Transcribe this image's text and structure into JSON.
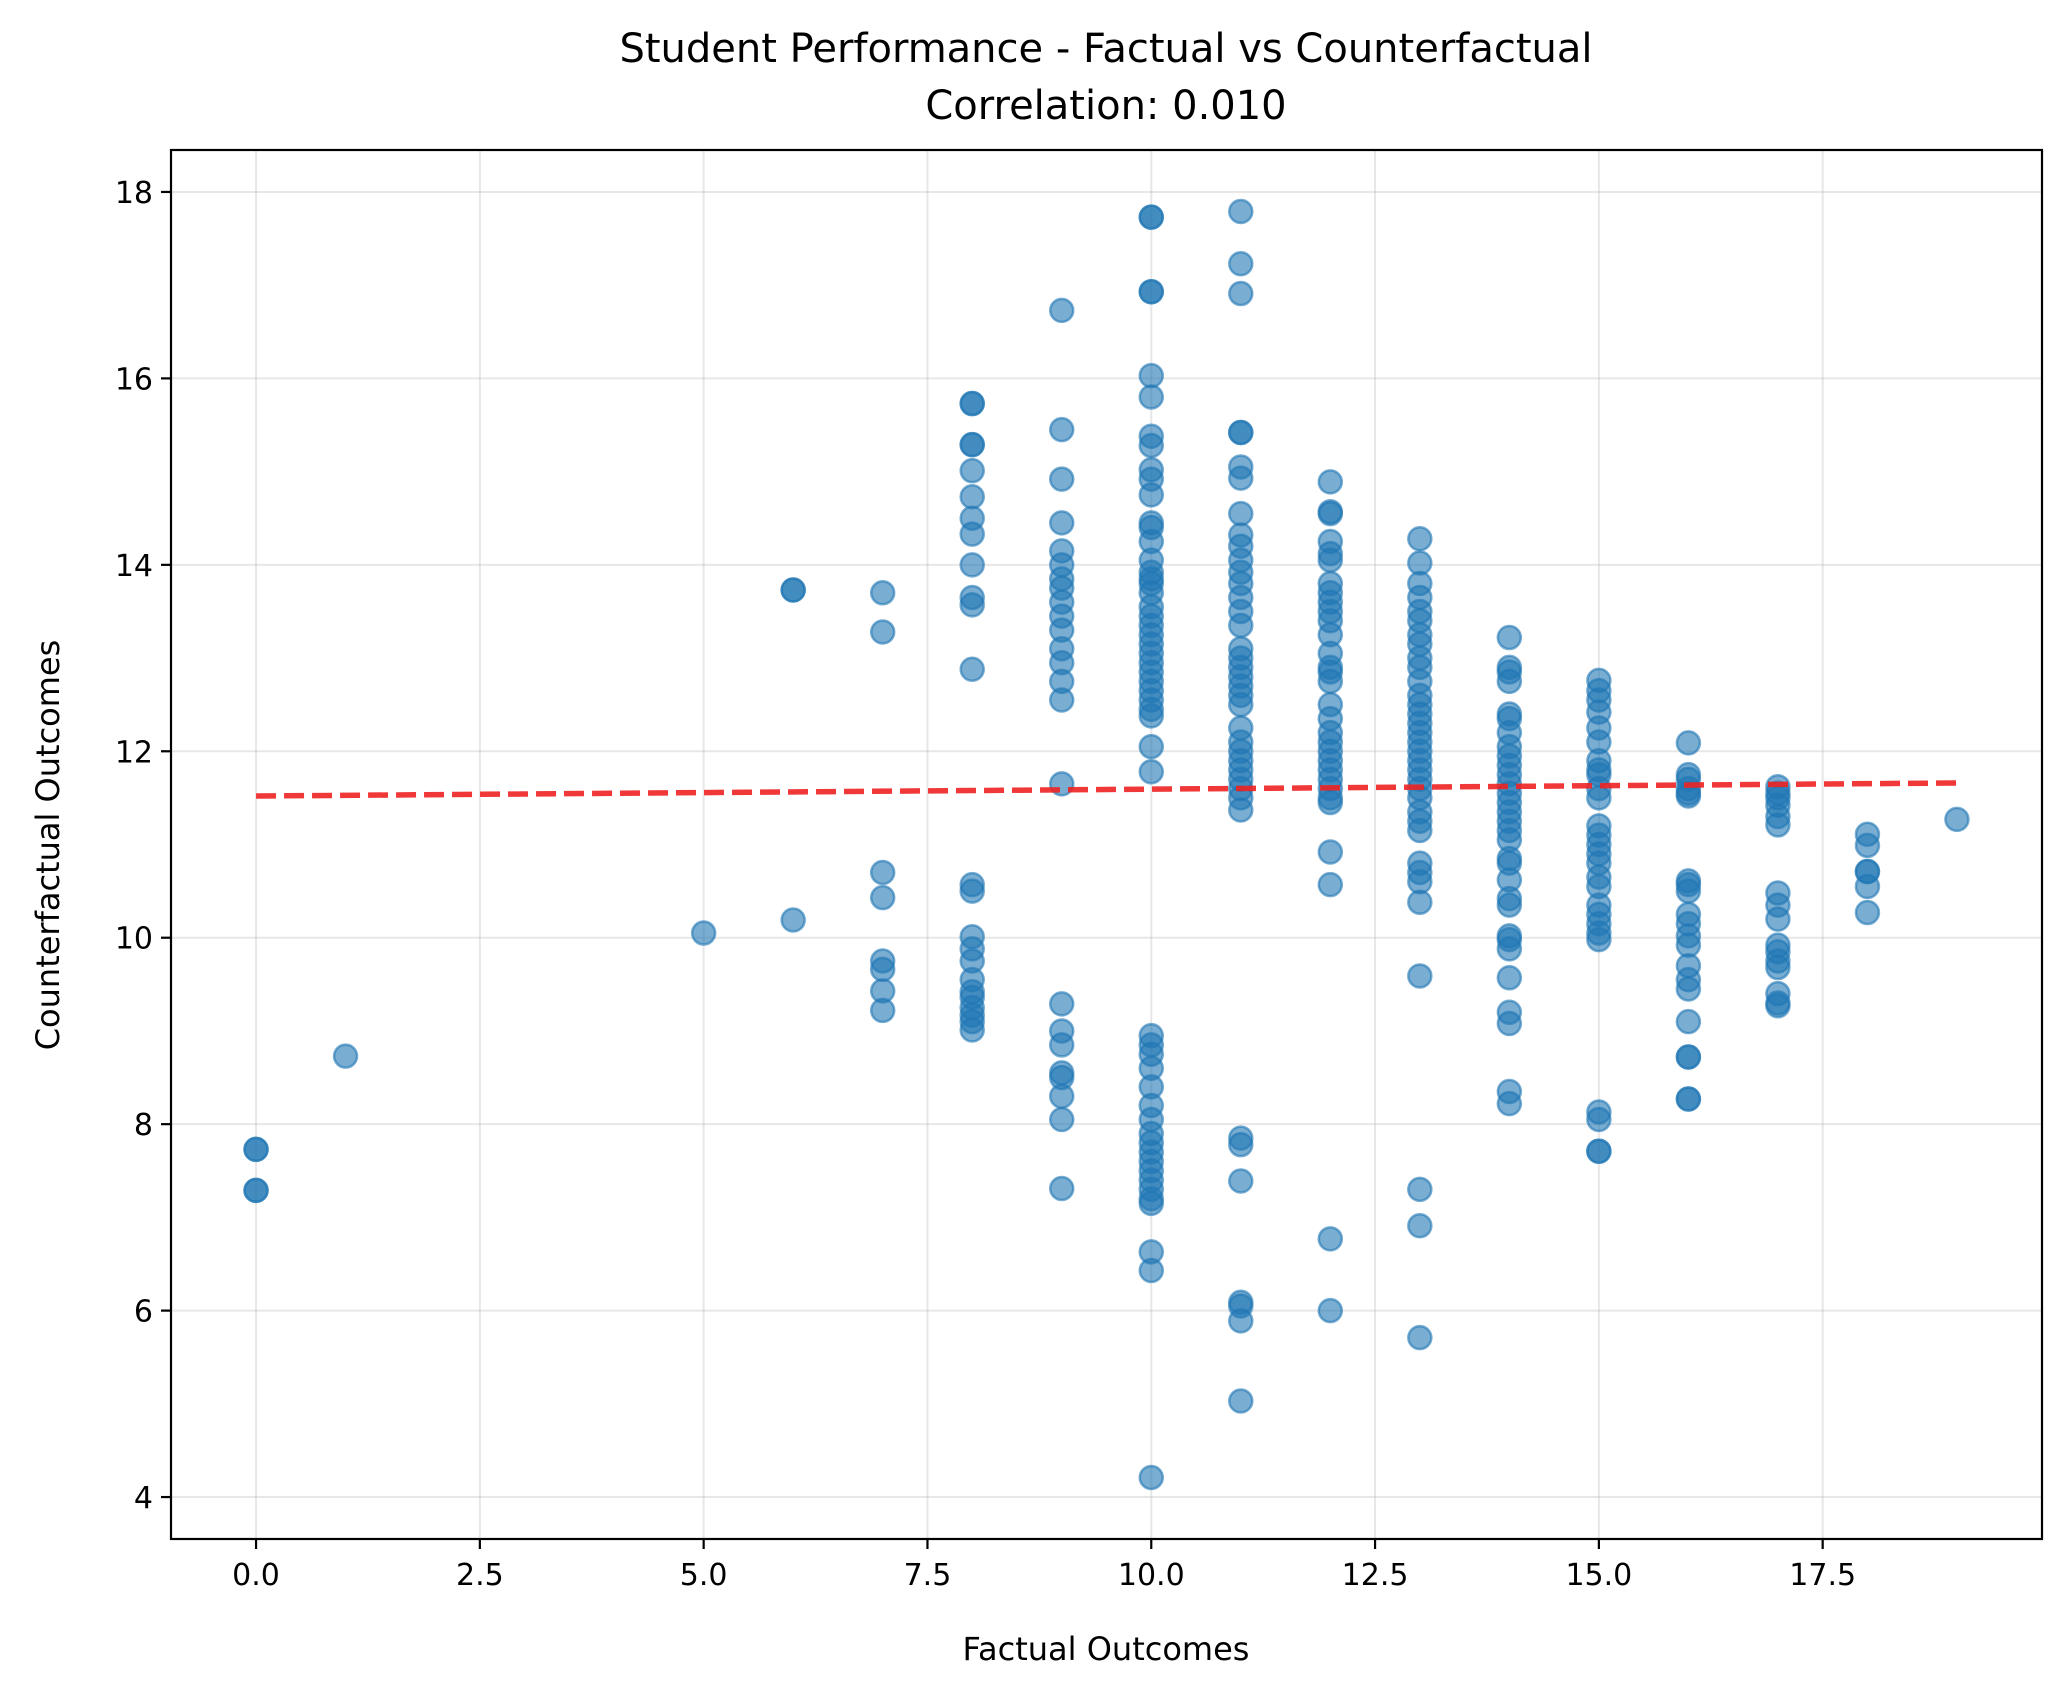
{
  "chart_data": {
    "type": "scatter",
    "title": "Student Performance - Factual vs Counterfactual",
    "subtitle": "Correlation: 0.010",
    "xlabel": "Factual Outcomes",
    "ylabel": "Counterfactual Outcomes",
    "xlim": [
      -0.95,
      19.95
    ],
    "ylim": [
      3.55,
      18.45
    ],
    "xticks": [
      0.0,
      2.5,
      5.0,
      7.5,
      10.0,
      12.5,
      15.0,
      17.5
    ],
    "xtick_labels": [
      "0.0",
      "2.5",
      "5.0",
      "7.5",
      "10.0",
      "12.5",
      "15.0",
      "17.5"
    ],
    "yticks": [
      4,
      6,
      8,
      10,
      12,
      14,
      16,
      18
    ],
    "ytick_labels": [
      "4",
      "6",
      "8",
      "10",
      "12",
      "14",
      "16",
      "18"
    ],
    "grid": true,
    "point_color": "#1f77b4",
    "point_alpha": 0.6,
    "trend_color": "#ee2222",
    "trend_line": {
      "x": [
        0,
        19
      ],
      "y": [
        11.52,
        11.66
      ],
      "style": "dashed"
    },
    "points": [
      [
        0,
        7.73
      ],
      [
        0,
        7.73
      ],
      [
        0,
        7.29
      ],
      [
        0,
        7.29
      ],
      [
        1,
        8.73
      ],
      [
        5,
        10.05
      ],
      [
        6,
        13.73
      ],
      [
        6,
        13.73
      ],
      [
        6,
        10.19
      ],
      [
        7,
        13.7
      ],
      [
        7,
        13.28
      ],
      [
        7,
        10.7
      ],
      [
        7,
        10.43
      ],
      [
        7,
        9.75
      ],
      [
        7,
        9.66
      ],
      [
        7,
        9.43
      ],
      [
        7,
        9.22
      ],
      [
        8,
        15.73
      ],
      [
        8,
        15.73
      ],
      [
        8,
        15.29
      ],
      [
        8,
        15.29
      ],
      [
        8,
        15.01
      ],
      [
        8,
        14.73
      ],
      [
        8,
        14.5
      ],
      [
        8,
        14.33
      ],
      [
        8,
        14.0
      ],
      [
        8,
        13.65
      ],
      [
        8,
        13.57
      ],
      [
        8,
        12.88
      ],
      [
        8,
        10.57
      ],
      [
        8,
        10.5
      ],
      [
        8,
        10.01
      ],
      [
        8,
        9.88
      ],
      [
        8,
        9.75
      ],
      [
        8,
        9.55
      ],
      [
        8,
        9.42
      ],
      [
        8,
        9.36
      ],
      [
        8,
        9.25
      ],
      [
        8,
        9.17
      ],
      [
        8,
        9.1
      ],
      [
        8,
        9.01
      ],
      [
        9,
        16.73
      ],
      [
        9,
        15.45
      ],
      [
        9,
        14.92
      ],
      [
        9,
        14.45
      ],
      [
        9,
        14.15
      ],
      [
        9,
        14.0
      ],
      [
        9,
        13.85
      ],
      [
        9,
        13.75
      ],
      [
        9,
        13.6
      ],
      [
        9,
        13.45
      ],
      [
        9,
        13.3
      ],
      [
        9,
        13.1
      ],
      [
        9,
        12.95
      ],
      [
        9,
        12.75
      ],
      [
        9,
        12.55
      ],
      [
        9,
        11.65
      ],
      [
        9,
        9.29
      ],
      [
        9,
        9.0
      ],
      [
        9,
        8.85
      ],
      [
        9,
        8.55
      ],
      [
        9,
        8.5
      ],
      [
        9,
        8.3
      ],
      [
        9,
        8.05
      ],
      [
        9,
        7.31
      ],
      [
        10,
        17.73
      ],
      [
        10,
        17.73
      ],
      [
        10,
        16.93
      ],
      [
        10,
        16.93
      ],
      [
        10,
        16.03
      ],
      [
        10,
        15.8
      ],
      [
        10,
        15.38
      ],
      [
        10,
        15.28
      ],
      [
        10,
        15.02
      ],
      [
        10,
        14.92
      ],
      [
        10,
        14.75
      ],
      [
        10,
        14.45
      ],
      [
        10,
        14.4
      ],
      [
        10,
        14.25
      ],
      [
        10,
        14.05
      ],
      [
        10,
        13.92
      ],
      [
        10,
        13.85
      ],
      [
        10,
        13.8
      ],
      [
        10,
        13.7
      ],
      [
        10,
        13.55
      ],
      [
        10,
        13.45
      ],
      [
        10,
        13.35
      ],
      [
        10,
        13.25
      ],
      [
        10,
        13.15
      ],
      [
        10,
        13.05
      ],
      [
        10,
        12.95
      ],
      [
        10,
        12.85
      ],
      [
        10,
        12.75
      ],
      [
        10,
        12.65
      ],
      [
        10,
        12.55
      ],
      [
        10,
        12.45
      ],
      [
        10,
        12.38
      ],
      [
        10,
        12.05
      ],
      [
        10,
        11.78
      ],
      [
        10,
        8.95
      ],
      [
        10,
        8.85
      ],
      [
        10,
        8.75
      ],
      [
        10,
        8.6
      ],
      [
        10,
        8.4
      ],
      [
        10,
        8.2
      ],
      [
        10,
        8.05
      ],
      [
        10,
        7.9
      ],
      [
        10,
        7.8
      ],
      [
        10,
        7.7
      ],
      [
        10,
        7.6
      ],
      [
        10,
        7.5
      ],
      [
        10,
        7.4
      ],
      [
        10,
        7.3
      ],
      [
        10,
        7.2
      ],
      [
        10,
        7.15
      ],
      [
        10,
        6.63
      ],
      [
        10,
        6.43
      ],
      [
        10,
        4.21
      ],
      [
        11,
        17.79
      ],
      [
        11,
        17.23
      ],
      [
        11,
        16.91
      ],
      [
        11,
        15.42
      ],
      [
        11,
        15.42
      ],
      [
        11,
        15.05
      ],
      [
        11,
        14.93
      ],
      [
        11,
        14.55
      ],
      [
        11,
        14.32
      ],
      [
        11,
        14.2
      ],
      [
        11,
        14.05
      ],
      [
        11,
        13.92
      ],
      [
        11,
        13.8
      ],
      [
        11,
        13.65
      ],
      [
        11,
        13.5
      ],
      [
        11,
        13.35
      ],
      [
        11,
        13.1
      ],
      [
        11,
        13.0
      ],
      [
        11,
        12.9
      ],
      [
        11,
        12.8
      ],
      [
        11,
        12.7
      ],
      [
        11,
        12.6
      ],
      [
        11,
        12.5
      ],
      [
        11,
        12.25
      ],
      [
        11,
        12.1
      ],
      [
        11,
        12.0
      ],
      [
        11,
        11.9
      ],
      [
        11,
        11.8
      ],
      [
        11,
        11.7
      ],
      [
        11,
        11.6
      ],
      [
        11,
        11.5
      ],
      [
        11,
        11.37
      ],
      [
        11,
        7.85
      ],
      [
        11,
        7.78
      ],
      [
        11,
        7.39
      ],
      [
        11,
        6.09
      ],
      [
        11,
        6.05
      ],
      [
        11,
        5.89
      ],
      [
        11,
        5.03
      ],
      [
        12,
        14.89
      ],
      [
        12,
        14.57
      ],
      [
        12,
        14.55
      ],
      [
        12,
        14.25
      ],
      [
        12,
        14.12
      ],
      [
        12,
        14.05
      ],
      [
        12,
        13.8
      ],
      [
        12,
        13.7
      ],
      [
        12,
        13.6
      ],
      [
        12,
        13.5
      ],
      [
        12,
        13.4
      ],
      [
        12,
        13.25
      ],
      [
        12,
        13.05
      ],
      [
        12,
        12.9
      ],
      [
        12,
        12.85
      ],
      [
        12,
        12.75
      ],
      [
        12,
        12.5
      ],
      [
        12,
        12.35
      ],
      [
        12,
        12.2
      ],
      [
        12,
        12.1
      ],
      [
        12,
        12.0
      ],
      [
        12,
        11.9
      ],
      [
        12,
        11.8
      ],
      [
        12,
        11.7
      ],
      [
        12,
        11.6
      ],
      [
        12,
        11.5
      ],
      [
        12,
        11.45
      ],
      [
        12,
        10.92
      ],
      [
        12,
        10.57
      ],
      [
        12,
        6.77
      ],
      [
        12,
        6.0
      ],
      [
        13,
        14.28
      ],
      [
        13,
        14.02
      ],
      [
        13,
        13.8
      ],
      [
        13,
        13.65
      ],
      [
        13,
        13.5
      ],
      [
        13,
        13.4
      ],
      [
        13,
        13.25
      ],
      [
        13,
        13.15
      ],
      [
        13,
        13.0
      ],
      [
        13,
        12.9
      ],
      [
        13,
        12.75
      ],
      [
        13,
        12.6
      ],
      [
        13,
        12.5
      ],
      [
        13,
        12.4
      ],
      [
        13,
        12.3
      ],
      [
        13,
        12.2
      ],
      [
        13,
        12.1
      ],
      [
        13,
        12.0
      ],
      [
        13,
        11.9
      ],
      [
        13,
        11.8
      ],
      [
        13,
        11.7
      ],
      [
        13,
        11.6
      ],
      [
        13,
        11.5
      ],
      [
        13,
        11.35
      ],
      [
        13,
        11.25
      ],
      [
        13,
        11.15
      ],
      [
        13,
        10.8
      ],
      [
        13,
        10.7
      ],
      [
        13,
        10.6
      ],
      [
        13,
        10.38
      ],
      [
        13,
        9.59
      ],
      [
        13,
        7.3
      ],
      [
        13,
        6.91
      ],
      [
        13,
        5.71
      ],
      [
        14,
        13.22
      ],
      [
        14,
        12.9
      ],
      [
        14,
        12.85
      ],
      [
        14,
        12.75
      ],
      [
        14,
        12.4
      ],
      [
        14,
        12.35
      ],
      [
        14,
        12.2
      ],
      [
        14,
        12.05
      ],
      [
        14,
        11.95
      ],
      [
        14,
        11.85
      ],
      [
        14,
        11.75
      ],
      [
        14,
        11.65
      ],
      [
        14,
        11.55
      ],
      [
        14,
        11.45
      ],
      [
        14,
        11.35
      ],
      [
        14,
        11.25
      ],
      [
        14,
        11.15
      ],
      [
        14,
        11.05
      ],
      [
        14,
        10.85
      ],
      [
        14,
        10.8
      ],
      [
        14,
        10.62
      ],
      [
        14,
        10.42
      ],
      [
        14,
        10.35
      ],
      [
        14,
        10.02
      ],
      [
        14,
        9.98
      ],
      [
        14,
        9.88
      ],
      [
        14,
        9.57
      ],
      [
        14,
        9.2
      ],
      [
        14,
        9.08
      ],
      [
        14,
        8.35
      ],
      [
        14,
        8.22
      ],
      [
        15,
        12.76
      ],
      [
        15,
        12.65
      ],
      [
        15,
        12.55
      ],
      [
        15,
        12.42
      ],
      [
        15,
        12.25
      ],
      [
        15,
        12.1
      ],
      [
        15,
        11.9
      ],
      [
        15,
        11.8
      ],
      [
        15,
        11.75
      ],
      [
        15,
        11.6
      ],
      [
        15,
        11.5
      ],
      [
        15,
        11.2
      ],
      [
        15,
        11.1
      ],
      [
        15,
        11.0
      ],
      [
        15,
        10.9
      ],
      [
        15,
        10.8
      ],
      [
        15,
        10.65
      ],
      [
        15,
        10.55
      ],
      [
        15,
        10.35
      ],
      [
        15,
        10.25
      ],
      [
        15,
        10.15
      ],
      [
        15,
        10.05
      ],
      [
        15,
        9.98
      ],
      [
        15,
        8.13
      ],
      [
        15,
        8.05
      ],
      [
        15,
        7.71
      ],
      [
        15,
        7.71
      ],
      [
        16,
        12.09
      ],
      [
        16,
        11.75
      ],
      [
        16,
        11.7
      ],
      [
        16,
        11.6
      ],
      [
        16,
        11.55
      ],
      [
        16,
        11.52
      ],
      [
        16,
        10.61
      ],
      [
        16,
        10.57
      ],
      [
        16,
        10.5
      ],
      [
        16,
        10.25
      ],
      [
        16,
        10.15
      ],
      [
        16,
        10.02
      ],
      [
        16,
        9.92
      ],
      [
        16,
        9.7
      ],
      [
        16,
        9.55
      ],
      [
        16,
        9.45
      ],
      [
        16,
        9.1
      ],
      [
        16,
        8.72
      ],
      [
        16,
        8.72
      ],
      [
        16,
        8.27
      ],
      [
        16,
        8.27
      ],
      [
        17,
        11.62
      ],
      [
        17,
        11.55
      ],
      [
        17,
        11.5
      ],
      [
        17,
        11.42
      ],
      [
        17,
        11.3
      ],
      [
        17,
        11.21
      ],
      [
        17,
        10.48
      ],
      [
        17,
        10.35
      ],
      [
        17,
        10.2
      ],
      [
        17,
        9.92
      ],
      [
        17,
        9.85
      ],
      [
        17,
        9.75
      ],
      [
        17,
        9.68
      ],
      [
        17,
        9.4
      ],
      [
        17,
        9.3
      ],
      [
        17,
        9.27
      ],
      [
        18,
        11.11
      ],
      [
        18,
        10.99
      ],
      [
        18,
        10.71
      ],
      [
        18,
        10.71
      ],
      [
        18,
        10.55
      ],
      [
        18,
        10.27
      ],
      [
        19,
        11.27
      ]
    ]
  }
}
